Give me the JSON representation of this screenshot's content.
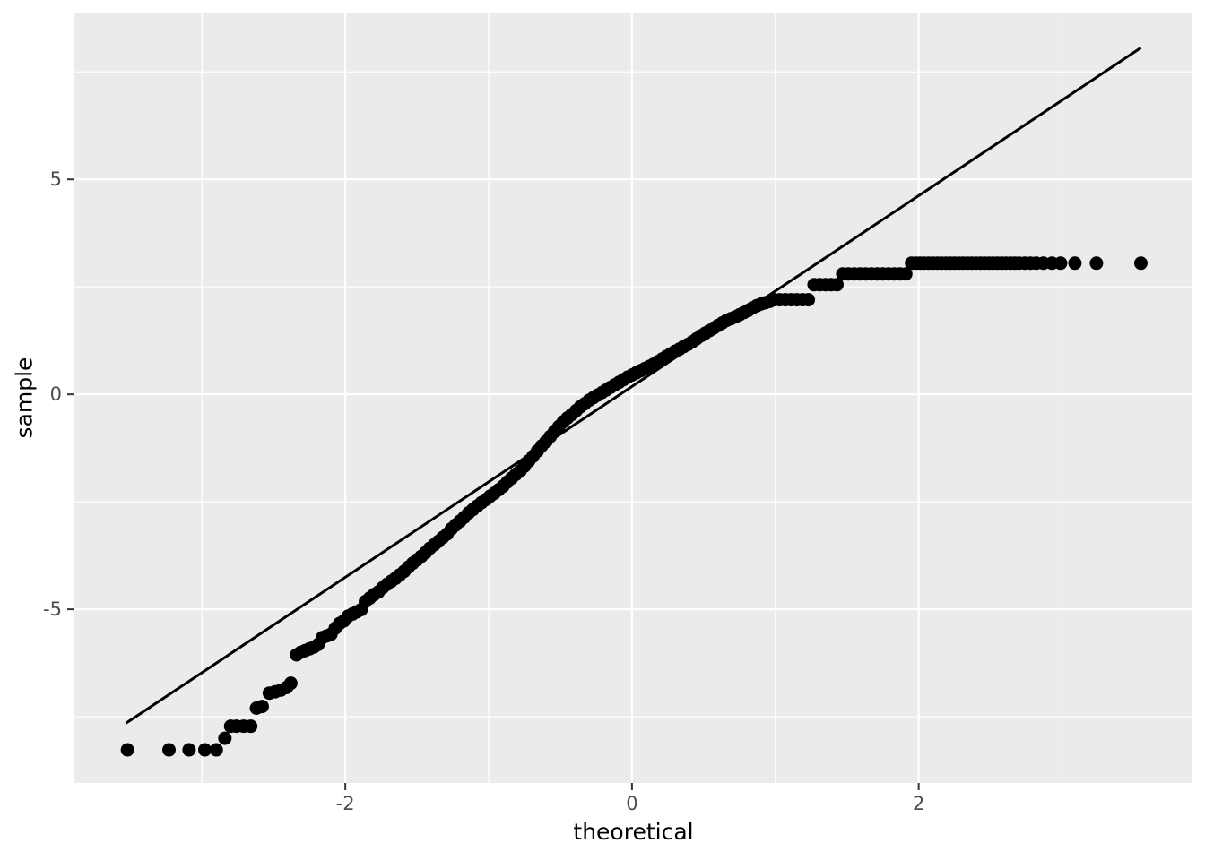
{
  "chart_data": {
    "type": "scatter",
    "title": "",
    "xlabel": "theoretical",
    "ylabel": "sample",
    "xlim": [
      -3.89,
      3.91
    ],
    "ylim": [
      -9.04,
      8.88
    ],
    "grid": true,
    "legend_position": "none",
    "x_major_ticks": [
      -2,
      0,
      2
    ],
    "x_tick_labels": [
      "-2",
      "0",
      "2"
    ],
    "x_minor_ticks": [
      -3,
      -1,
      1,
      3
    ],
    "y_major_ticks": [
      5,
      0,
      -5
    ],
    "y_tick_labels": [
      "5",
      "0",
      "-5"
    ],
    "y_minor_ticks": [
      -7.5,
      -2.5,
      2.5,
      7.5
    ],
    "reference_line": {
      "x1": -3.53,
      "y1": -7.65,
      "x2": 3.55,
      "y2": 8.06
    },
    "colors": {
      "panel_background": "#EBEBEB",
      "grid_major": "#FFFFFF",
      "grid_minor": "#FFFFFF",
      "point": "#000000",
      "line": "#000000",
      "tick_mark": "#333333",
      "tick_label": "#4D4D4D",
      "axis_title": "#000000",
      "outer_background": "#FFFFFF"
    },
    "points": [
      [
        -3.52,
        -8.27
      ],
      [
        -3.23,
        -8.27
      ],
      [
        -3.09,
        -8.27
      ],
      [
        -2.98,
        -8.27
      ],
      [
        -2.9,
        -8.27
      ],
      [
        -2.84,
        -8.0
      ],
      [
        -2.8,
        -7.72
      ],
      [
        -2.76,
        -7.72
      ],
      [
        -2.71,
        -7.72
      ],
      [
        -2.66,
        -7.72
      ],
      [
        -2.62,
        -7.3
      ],
      [
        -2.58,
        -7.26
      ],
      [
        -2.53,
        -6.95
      ],
      [
        -2.49,
        -6.92
      ],
      [
        -2.45,
        -6.88
      ],
      [
        -2.41,
        -6.82
      ],
      [
        -2.38,
        -6.72
      ],
      [
        -2.34,
        -6.06
      ],
      [
        -2.31,
        -6.0
      ],
      [
        -2.28,
        -5.96
      ],
      [
        -2.25,
        -5.92
      ],
      [
        -2.22,
        -5.88
      ],
      [
        -2.19,
        -5.82
      ],
      [
        -2.16,
        -5.66
      ],
      [
        -2.13,
        -5.62
      ],
      [
        -2.1,
        -5.58
      ],
      [
        -2.07,
        -5.44
      ],
      [
        -2.04,
        -5.33
      ],
      [
        -2.01,
        -5.27
      ],
      [
        -1.98,
        -5.16
      ],
      [
        -1.95,
        -5.11
      ],
      [
        -1.92,
        -5.06
      ],
      [
        -1.89,
        -5.01
      ],
      [
        -1.86,
        -4.82
      ],
      [
        -1.83,
        -4.74
      ],
      [
        -1.8,
        -4.66
      ],
      [
        -1.77,
        -4.6
      ],
      [
        -1.74,
        -4.5
      ],
      [
        -1.71,
        -4.42
      ],
      [
        -1.68,
        -4.35
      ],
      [
        -1.65,
        -4.28
      ],
      [
        -1.62,
        -4.2
      ],
      [
        -1.59,
        -4.12
      ],
      [
        -1.56,
        -4.02
      ],
      [
        -1.53,
        -3.93
      ],
      [
        -1.5,
        -3.85
      ],
      [
        -1.47,
        -3.77
      ],
      [
        -1.44,
        -3.68
      ],
      [
        -1.41,
        -3.58
      ],
      [
        -1.38,
        -3.5
      ],
      [
        -1.35,
        -3.42
      ],
      [
        -1.32,
        -3.33
      ],
      [
        -1.29,
        -3.25
      ],
      [
        -1.26,
        -3.13
      ],
      [
        -1.23,
        -3.04
      ],
      [
        -1.2,
        -2.95
      ],
      [
        -1.17,
        -2.86
      ],
      [
        -1.14,
        -2.76
      ],
      [
        -1.11,
        -2.68
      ],
      [
        -1.08,
        -2.6
      ],
      [
        -1.05,
        -2.52
      ],
      [
        -1.02,
        -2.45
      ],
      [
        -0.99,
        -2.37
      ],
      [
        -0.96,
        -2.3
      ],
      [
        -0.93,
        -2.22
      ],
      [
        -0.9,
        -2.14
      ],
      [
        -0.87,
        -2.04
      ],
      [
        -0.84,
        -1.95
      ],
      [
        -0.81,
        -1.86
      ],
      [
        -0.78,
        -1.78
      ],
      [
        -0.75,
        -1.67
      ],
      [
        -0.72,
        -1.55
      ],
      [
        -0.69,
        -1.44
      ],
      [
        -0.66,
        -1.32
      ],
      [
        -0.63,
        -1.2
      ],
      [
        -0.6,
        -1.1
      ],
      [
        -0.57,
        -0.98
      ],
      [
        -0.54,
        -0.86
      ],
      [
        -0.51,
        -0.75
      ],
      [
        -0.48,
        -0.64
      ],
      [
        -0.45,
        -0.55
      ],
      [
        -0.42,
        -0.47
      ],
      [
        -0.39,
        -0.38
      ],
      [
        -0.36,
        -0.29
      ],
      [
        -0.33,
        -0.22
      ],
      [
        -0.3,
        -0.14
      ],
      [
        -0.27,
        -0.08
      ],
      [
        -0.24,
        -0.02
      ],
      [
        -0.21,
        0.04
      ],
      [
        -0.18,
        0.1
      ],
      [
        -0.15,
        0.16
      ],
      [
        -0.12,
        0.22
      ],
      [
        -0.09,
        0.28
      ],
      [
        -0.06,
        0.34
      ],
      [
        -0.03,
        0.4
      ],
      [
        0.0,
        0.45
      ],
      [
        0.03,
        0.5
      ],
      [
        0.06,
        0.55
      ],
      [
        0.09,
        0.6
      ],
      [
        0.12,
        0.65
      ],
      [
        0.15,
        0.7
      ],
      [
        0.18,
        0.76
      ],
      [
        0.21,
        0.82
      ],
      [
        0.24,
        0.88
      ],
      [
        0.27,
        0.94
      ],
      [
        0.3,
        1.0
      ],
      [
        0.33,
        1.05
      ],
      [
        0.36,
        1.11
      ],
      [
        0.39,
        1.16
      ],
      [
        0.42,
        1.22
      ],
      [
        0.45,
        1.29
      ],
      [
        0.48,
        1.36
      ],
      [
        0.51,
        1.42
      ],
      [
        0.54,
        1.48
      ],
      [
        0.57,
        1.54
      ],
      [
        0.6,
        1.6
      ],
      [
        0.63,
        1.66
      ],
      [
        0.66,
        1.72
      ],
      [
        0.69,
        1.76
      ],
      [
        0.72,
        1.8
      ],
      [
        0.75,
        1.85
      ],
      [
        0.78,
        1.9
      ],
      [
        0.81,
        1.95
      ],
      [
        0.84,
        2.01
      ],
      [
        0.87,
        2.06
      ],
      [
        0.9,
        2.1
      ],
      [
        0.93,
        2.13
      ],
      [
        0.96,
        2.16
      ],
      [
        0.99,
        2.2
      ],
      [
        1.03,
        2.2
      ],
      [
        1.07,
        2.2
      ],
      [
        1.11,
        2.2
      ],
      [
        1.15,
        2.2
      ],
      [
        1.19,
        2.2
      ],
      [
        1.23,
        2.2
      ],
      [
        1.27,
        2.55
      ],
      [
        1.31,
        2.55
      ],
      [
        1.35,
        2.55
      ],
      [
        1.39,
        2.55
      ],
      [
        1.43,
        2.55
      ],
      [
        1.47,
        2.8
      ],
      [
        1.51,
        2.8
      ],
      [
        1.55,
        2.8
      ],
      [
        1.59,
        2.8
      ],
      [
        1.63,
        2.8
      ],
      [
        1.67,
        2.8
      ],
      [
        1.71,
        2.8
      ],
      [
        1.75,
        2.8
      ],
      [
        1.79,
        2.8
      ],
      [
        1.83,
        2.8
      ],
      [
        1.87,
        2.8
      ],
      [
        1.91,
        2.8
      ],
      [
        1.95,
        3.05
      ],
      [
        1.98,
        3.05
      ],
      [
        2.01,
        3.05
      ],
      [
        2.04,
        3.05
      ],
      [
        2.07,
        3.05
      ],
      [
        2.1,
        3.05
      ],
      [
        2.13,
        3.05
      ],
      [
        2.16,
        3.05
      ],
      [
        2.19,
        3.05
      ],
      [
        2.22,
        3.05
      ],
      [
        2.25,
        3.05
      ],
      [
        2.28,
        3.05
      ],
      [
        2.31,
        3.05
      ],
      [
        2.34,
        3.05
      ],
      [
        2.37,
        3.05
      ],
      [
        2.4,
        3.05
      ],
      [
        2.43,
        3.05
      ],
      [
        2.46,
        3.05
      ],
      [
        2.49,
        3.05
      ],
      [
        2.52,
        3.05
      ],
      [
        2.55,
        3.05
      ],
      [
        2.58,
        3.05
      ],
      [
        2.61,
        3.05
      ],
      [
        2.64,
        3.05
      ],
      [
        2.67,
        3.05
      ],
      [
        2.7,
        3.05
      ],
      [
        2.74,
        3.05
      ],
      [
        2.78,
        3.05
      ],
      [
        2.82,
        3.05
      ],
      [
        2.87,
        3.05
      ],
      [
        2.93,
        3.05
      ],
      [
        2.99,
        3.05
      ],
      [
        3.09,
        3.05
      ],
      [
        3.24,
        3.05
      ],
      [
        3.55,
        3.05
      ]
    ]
  }
}
